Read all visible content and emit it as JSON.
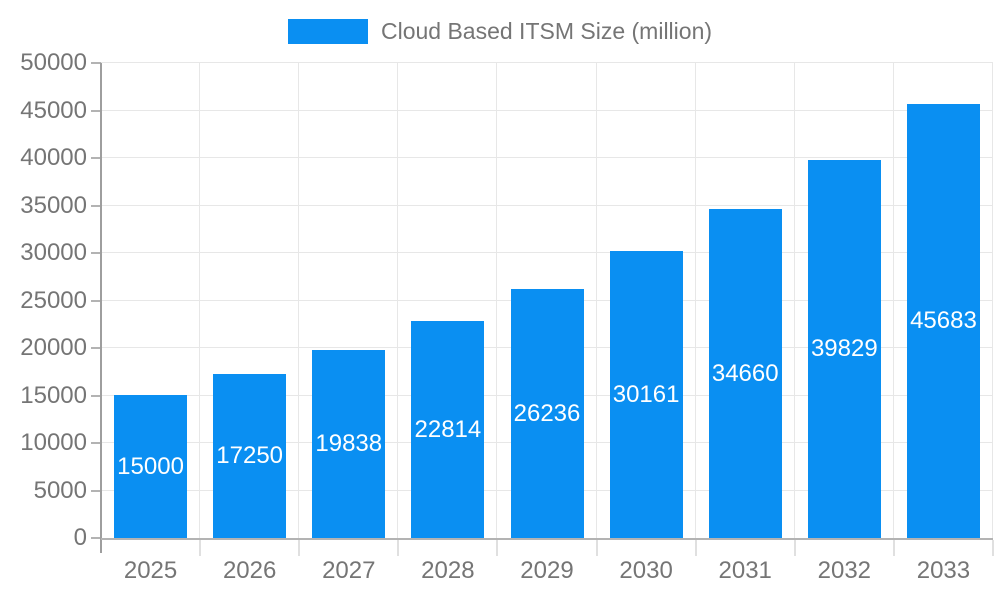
{
  "legend": {
    "label": "Cloud Based ITSM Size (million)"
  },
  "colors": {
    "bar": "#0a8ff2",
    "grid": "#e7e7e7",
    "y_axis_line": "#9e9e9e",
    "baseline": "#b3b3b3",
    "x_tick": "#e0e0e0",
    "y_tick": "#b3b3b3",
    "axis_text": "#757575",
    "bar_label_text": "#ffffff"
  },
  "chart_data": {
    "type": "bar",
    "title": "Cloud Based ITSM Size (million)",
    "categories": [
      "2025",
      "2026",
      "2027",
      "2028",
      "2029",
      "2030",
      "2031",
      "2032",
      "2033"
    ],
    "values": [
      15000,
      17250,
      19838,
      22814,
      26236,
      30161,
      34660,
      39829,
      45683
    ],
    "xlabel": "",
    "ylabel": "",
    "ylim": [
      0,
      50000
    ],
    "yticks": [
      0,
      5000,
      10000,
      15000,
      20000,
      25000,
      30000,
      35000,
      40000,
      45000,
      50000
    ],
    "grid": true,
    "legend_position": "top",
    "bar_value_labels": "inside-center"
  }
}
